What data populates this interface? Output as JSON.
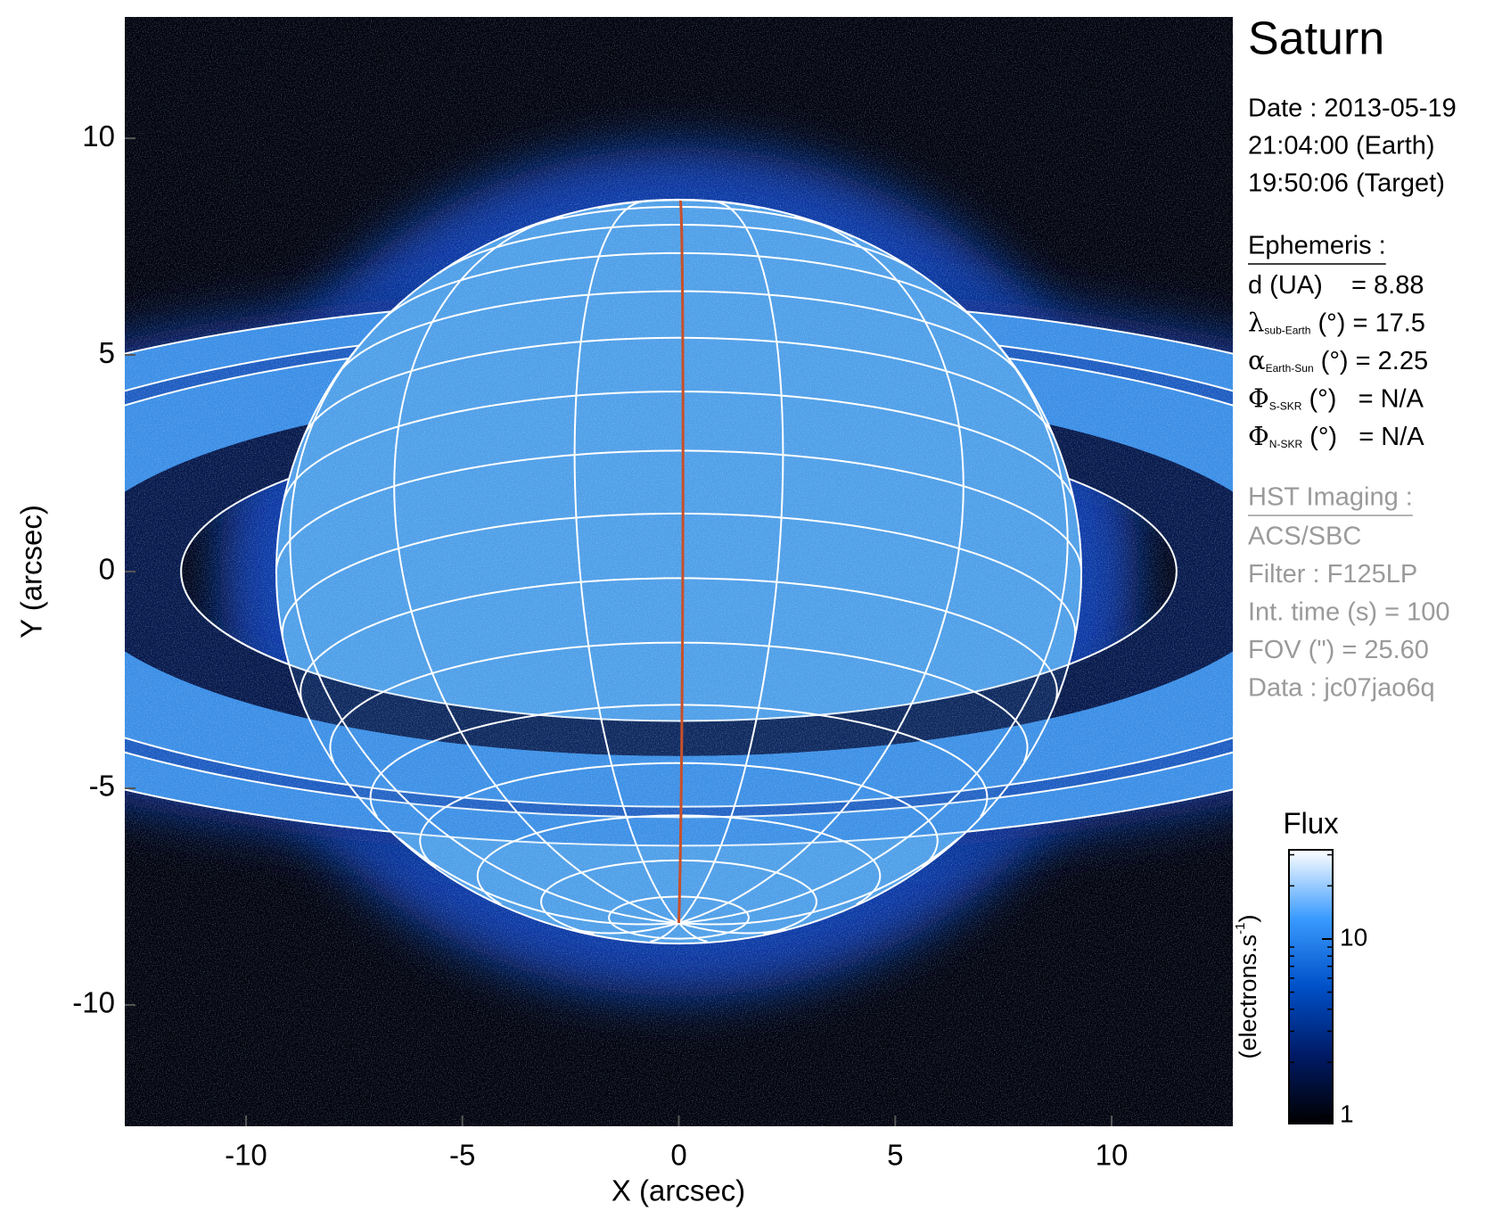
{
  "chart_data": {
    "type": "image",
    "title": "Saturn",
    "x_label": "X (arcsec)",
    "y_label": "Y (arcsec)",
    "xlim": [
      -12.8,
      12.8
    ],
    "ylim": [
      -12.8,
      12.8
    ],
    "xticks": [
      -10,
      -5,
      0,
      5,
      10
    ],
    "yticks": [
      -10,
      -5,
      0,
      5,
      10
    ],
    "info": {
      "date": [
        "Date : 2013-05-19",
        "21:04:00 (Earth)",
        "19:50:06 (Target)"
      ],
      "ephemeris": {
        "heading": "Ephemeris :",
        "lines": [
          {
            "text": "d (UA)    = 8.88"
          },
          {
            "symbol": "λ",
            "sub": "sub-Earth",
            "text": " (°) = 17.5"
          },
          {
            "symbol": "α",
            "sub": "Earth-Sun",
            "text": " (°) = 2.25"
          },
          {
            "symbol": "Φ",
            "sub": "S-SKR",
            "text": " (°)   = N/A"
          },
          {
            "symbol": "Φ",
            "sub": "N-SKR",
            "text": " (°)   = N/A"
          }
        ]
      },
      "imaging": {
        "heading": "HST Imaging :",
        "lines": [
          "ACS/SBC",
          "Filter : F125LP",
          "Int. time (s) = 100",
          "FOV (\") = 25.60",
          "Data : jc07jao6q"
        ]
      }
    },
    "colorbar": {
      "title": "Flux",
      "label": [
        "(electrons.s",
        "-1",
        ")"
      ],
      "scale": "log",
      "lim": [
        0.9,
        32
      ],
      "ticks": [
        1,
        10
      ],
      "colormap": [
        "#000000",
        "#001a66",
        "#0050c8",
        "#3a9bff",
        "#ffffff"
      ]
    }
  }
}
